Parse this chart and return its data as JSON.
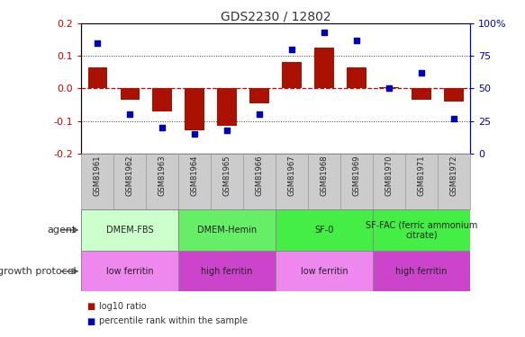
{
  "title": "GDS2230 / 12802",
  "samples": [
    "GSM81961",
    "GSM81962",
    "GSM81963",
    "GSM81964",
    "GSM81965",
    "GSM81966",
    "GSM81967",
    "GSM81968",
    "GSM81969",
    "GSM81970",
    "GSM81971",
    "GSM81972"
  ],
  "log10_ratio": [
    0.065,
    -0.035,
    -0.07,
    -0.13,
    -0.115,
    -0.045,
    0.082,
    0.125,
    0.065,
    0.005,
    -0.035,
    -0.04
  ],
  "percentile_rank": [
    85,
    30,
    20,
    15,
    18,
    30,
    80,
    93,
    87,
    50,
    62,
    27
  ],
  "ylim": [
    -0.2,
    0.2
  ],
  "yticks": [
    -0.2,
    -0.1,
    0.0,
    0.1,
    0.2
  ],
  "right_yticks": [
    0,
    25,
    50,
    75,
    100
  ],
  "bar_color": "#aa1100",
  "dot_color": "#0000bb",
  "hline_color": "#cc0000",
  "dot_line_color": "#333333",
  "agent_groups": [
    {
      "label": "DMEM-FBS",
      "start": 0,
      "end": 3,
      "color": "#ccffcc"
    },
    {
      "label": "DMEM-Hemin",
      "start": 3,
      "end": 6,
      "color": "#66ee66"
    },
    {
      "label": "SF-0",
      "start": 6,
      "end": 9,
      "color": "#44ee44"
    },
    {
      "label": "SF-FAC (ferric ammonium\ncitrate)",
      "start": 9,
      "end": 12,
      "color": "#44ee44"
    }
  ],
  "growth_groups": [
    {
      "label": "low ferritin",
      "start": 0,
      "end": 3,
      "color": "#ee88ee"
    },
    {
      "label": "high ferritin",
      "start": 3,
      "end": 6,
      "color": "#cc44cc"
    },
    {
      "label": "low ferritin",
      "start": 6,
      "end": 9,
      "color": "#ee88ee"
    },
    {
      "label": "high ferritin",
      "start": 9,
      "end": 12,
      "color": "#cc44cc"
    }
  ],
  "legend_bar_label": "log10 ratio",
  "legend_dot_label": "percentile rank within the sample",
  "title_color": "#333333",
  "left_axis_color": "#cc0000",
  "right_axis_color": "#0000cc",
  "sample_label_bg": "#cccccc",
  "sample_label_edge": "#999999"
}
